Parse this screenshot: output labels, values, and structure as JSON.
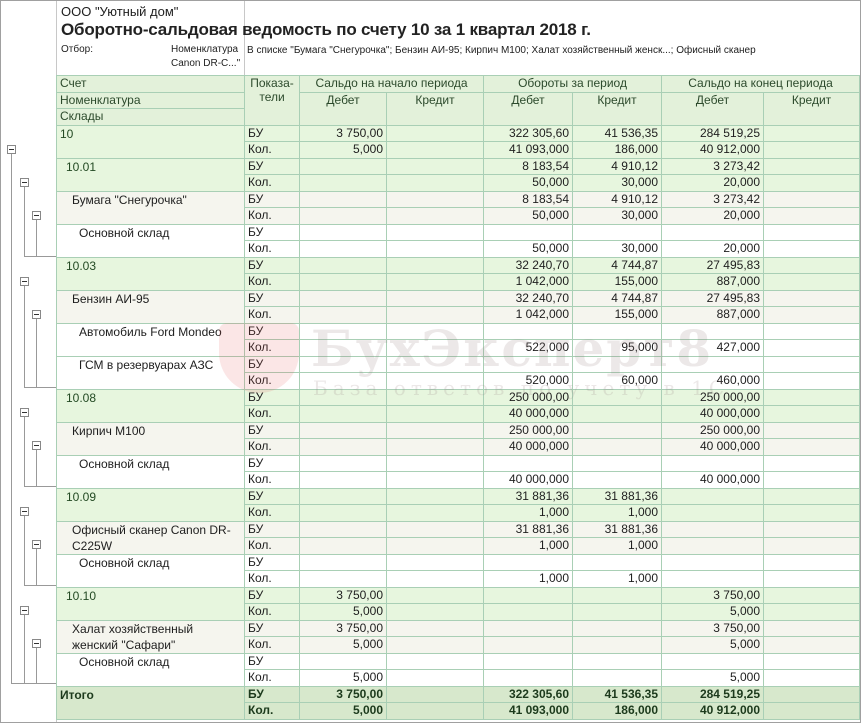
{
  "header": {
    "organization": "ООО \"Уютный дом\"",
    "title": "Оборотно-сальдовая ведомость по счету 10 за 1 квартал 2018 г.",
    "filter_label": "Отбор:",
    "filter_field": "Номенклатура",
    "filter_value": "В списке \"Бумага \"Снегурочка\"; Бензин АИ-95; Кирпич М100; Халат хозяйственный женск...; Офисный сканер",
    "filter_value_cont": "Canon DR-C...\""
  },
  "columns": {
    "account": "Счет",
    "nomenclature": "Номенклатура",
    "warehouses": "Склады",
    "indicators": "Показа-\nтели",
    "opening": "Сальдо на начало периода",
    "turnover": "Обороты за период",
    "closing": "Сальдо на конец периода",
    "debit": "Дебет",
    "credit": "Кредит"
  },
  "rows": [
    {
      "name": "10",
      "level": 0,
      "type": "g",
      "bu": [
        "3 750,00",
        "",
        "322 305,60",
        "41 536,35",
        "284 519,25",
        ""
      ],
      "kol": [
        "5,000",
        "",
        "41 093,000",
        "186,000",
        "40 912,000",
        ""
      ]
    },
    {
      "name": "10.01",
      "level": 1,
      "type": "g",
      "bu": [
        "",
        "",
        "8 183,54",
        "4 910,12",
        "3 273,42",
        ""
      ],
      "kol": [
        "",
        "",
        "50,000",
        "30,000",
        "20,000",
        ""
      ]
    },
    {
      "name": "Бумага \"Снегурочка\"",
      "level": 2,
      "type": "i",
      "bu": [
        "",
        "",
        "8 183,54",
        "4 910,12",
        "3 273,42",
        ""
      ],
      "kol": [
        "",
        "",
        "50,000",
        "30,000",
        "20,000",
        ""
      ]
    },
    {
      "name": "Основной склад",
      "level": 3,
      "type": "w",
      "bu": [
        "",
        "",
        "",
        "",
        "",
        ""
      ],
      "kol": [
        "",
        "",
        "50,000",
        "30,000",
        "20,000",
        ""
      ]
    },
    {
      "name": "10.03",
      "level": 1,
      "type": "g",
      "bu": [
        "",
        "",
        "32 240,70",
        "4 744,87",
        "27 495,83",
        ""
      ],
      "kol": [
        "",
        "",
        "1 042,000",
        "155,000",
        "887,000",
        ""
      ]
    },
    {
      "name": "Бензин АИ-95",
      "level": 2,
      "type": "i",
      "bu": [
        "",
        "",
        "32 240,70",
        "4 744,87",
        "27 495,83",
        ""
      ],
      "kol": [
        "",
        "",
        "1 042,000",
        "155,000",
        "887,000",
        ""
      ]
    },
    {
      "name": "Автомобиль Ford Mondeo",
      "level": 3,
      "type": "w",
      "bu": [
        "",
        "",
        "",
        "",
        "",
        ""
      ],
      "kol": [
        "",
        "",
        "522,000",
        "95,000",
        "427,000",
        ""
      ]
    },
    {
      "name": "ГСМ в резервуарах АЗС",
      "level": 3,
      "type": "w",
      "bu": [
        "",
        "",
        "",
        "",
        "",
        ""
      ],
      "kol": [
        "",
        "",
        "520,000",
        "60,000",
        "460,000",
        ""
      ]
    },
    {
      "name": "10.08",
      "level": 1,
      "type": "g",
      "bu": [
        "",
        "",
        "250 000,00",
        "",
        "250 000,00",
        ""
      ],
      "kol": [
        "",
        "",
        "40 000,000",
        "",
        "40 000,000",
        ""
      ]
    },
    {
      "name": "Кирпич М100",
      "level": 2,
      "type": "i",
      "bu": [
        "",
        "",
        "250 000,00",
        "",
        "250 000,00",
        ""
      ],
      "kol": [
        "",
        "",
        "40 000,000",
        "",
        "40 000,000",
        ""
      ]
    },
    {
      "name": "Основной склад",
      "level": 3,
      "type": "w",
      "bu": [
        "",
        "",
        "",
        "",
        "",
        ""
      ],
      "kol": [
        "",
        "",
        "40 000,000",
        "",
        "40 000,000",
        ""
      ]
    },
    {
      "name": "10.09",
      "level": 1,
      "type": "g",
      "bu": [
        "",
        "",
        "31 881,36",
        "31 881,36",
        "",
        ""
      ],
      "kol": [
        "",
        "",
        "1,000",
        "1,000",
        "",
        ""
      ]
    },
    {
      "name": "Офисный сканер Canon DR-C225W",
      "level": 2,
      "type": "i",
      "bu": [
        "",
        "",
        "31 881,36",
        "31 881,36",
        "",
        ""
      ],
      "kol": [
        "",
        "",
        "1,000",
        "1,000",
        "",
        ""
      ]
    },
    {
      "name": "Основной склад",
      "level": 3,
      "type": "w",
      "bu": [
        "",
        "",
        "",
        "",
        "",
        ""
      ],
      "kol": [
        "",
        "",
        "1,000",
        "1,000",
        "",
        ""
      ]
    },
    {
      "name": "10.10",
      "level": 1,
      "type": "g",
      "bu": [
        "3 750,00",
        "",
        "",
        "",
        "3 750,00",
        ""
      ],
      "kol": [
        "5,000",
        "",
        "",
        "",
        "5,000",
        ""
      ]
    },
    {
      "name": "Халат хозяйственный женский \"Сафари\"",
      "level": 2,
      "type": "i",
      "bu": [
        "3 750,00",
        "",
        "",
        "",
        "3 750,00",
        ""
      ],
      "kol": [
        "5,000",
        "",
        "",
        "",
        "5,000",
        ""
      ]
    },
    {
      "name": "Основной склад",
      "level": 3,
      "type": "w",
      "bu": [
        "",
        "",
        "",
        "",
        "",
        ""
      ],
      "kol": [
        "5,000",
        "",
        "",
        "",
        "5,000",
        ""
      ]
    }
  ],
  "total": {
    "name": "Итого",
    "bu": [
      "3 750,00",
      "",
      "322 305,60",
      "41 536,35",
      "284 519,25",
      ""
    ],
    "kol": [
      "5,000",
      "",
      "41 093,000",
      "186,000",
      "40 912,000",
      ""
    ]
  },
  "indicator_bu": "БУ",
  "indicator_kol": "Кол.",
  "watermark": {
    "logo": "БухЭксперт8",
    "tagline": "База ответов по учету в 1С"
  }
}
